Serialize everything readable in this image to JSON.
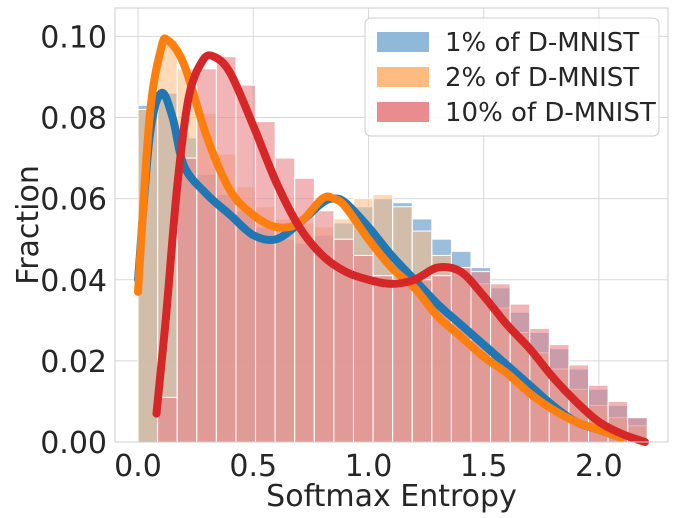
{
  "chart_data": {
    "type": "bar",
    "xlabel": "Softmax Entropy",
    "ylabel": "Fraction",
    "xlim": [
      -0.1,
      2.3
    ],
    "ylim": [
      0,
      0.107
    ],
    "grid": true,
    "legend_position": "top-right",
    "x_ticks": [
      {
        "value": 0.0,
        "label": "0.0"
      },
      {
        "value": 0.5,
        "label": "0.5"
      },
      {
        "value": 1.0,
        "label": "1.0"
      },
      {
        "value": 1.5,
        "label": "1.5"
      },
      {
        "value": 2.0,
        "label": "2.0"
      }
    ],
    "y_ticks": [
      {
        "value": 0.0,
        "label": "0.00"
      },
      {
        "value": 0.02,
        "label": "0.02"
      },
      {
        "value": 0.04,
        "label": "0.04"
      },
      {
        "value": 0.06,
        "label": "0.06"
      },
      {
        "value": 0.08,
        "label": "0.08"
      },
      {
        "value": 0.1,
        "label": "0.10"
      }
    ],
    "colors": {
      "s1_fill": "#8fb8d9",
      "s1_line": "#1f77b4",
      "s2_fill": "#ffbb80",
      "s2_line": "#ff7f0e",
      "s3_fill": "#e8868a",
      "s3_line": "#d62728",
      "grid": "#d8d8d8",
      "axis": "#262626"
    },
    "series": [
      {
        "name": "1% of D-MNIST",
        "histogram": {
          "bin_start": 0.0,
          "bin_width": 0.085,
          "values": [
            0.083,
            0.086,
            0.075,
            0.066,
            0.061,
            0.057,
            0.053,
            0.05,
            0.049,
            0.051,
            0.054,
            0.058,
            0.06,
            0.059,
            0.055,
            0.05,
            0.047,
            0.043,
            0.038,
            0.032,
            0.027,
            0.023,
            0.018,
            0.013,
            0.009,
            0.006
          ]
        },
        "kde": {
          "x": [
            0.0,
            0.05,
            0.1,
            0.15,
            0.2,
            0.3,
            0.4,
            0.5,
            0.6,
            0.7,
            0.8,
            0.85,
            0.9,
            1.0,
            1.1,
            1.2,
            1.3,
            1.4,
            1.5,
            1.6,
            1.7,
            1.8,
            1.9,
            2.0,
            2.1
          ],
          "y": [
            0.04,
            0.075,
            0.086,
            0.08,
            0.068,
            0.061,
            0.056,
            0.051,
            0.05,
            0.054,
            0.059,
            0.06,
            0.059,
            0.053,
            0.046,
            0.04,
            0.034,
            0.029,
            0.024,
            0.019,
            0.014,
            0.009,
            0.005,
            0.003,
            0.001
          ]
        }
      },
      {
        "name": "2% of D-MNIST",
        "histogram": {
          "bin_start": 0.0,
          "bin_width": 0.085,
          "values": [
            0.082,
            0.099,
            0.092,
            0.081,
            0.071,
            0.063,
            0.058,
            0.055,
            0.054,
            0.053,
            0.055,
            0.06,
            0.061,
            0.058,
            0.052,
            0.046,
            0.043,
            0.039,
            0.033,
            0.027,
            0.022,
            0.018,
            0.013,
            0.009,
            0.006,
            0.004
          ]
        },
        "kde": {
          "x": [
            0.0,
            0.05,
            0.1,
            0.13,
            0.2,
            0.3,
            0.4,
            0.5,
            0.6,
            0.7,
            0.8,
            0.85,
            0.9,
            1.0,
            1.1,
            1.2,
            1.3,
            1.4,
            1.5,
            1.6,
            1.7,
            1.8,
            1.9,
            2.0,
            2.1
          ],
          "y": [
            0.037,
            0.08,
            0.097,
            0.099,
            0.093,
            0.075,
            0.062,
            0.056,
            0.053,
            0.054,
            0.06,
            0.06,
            0.058,
            0.05,
            0.043,
            0.038,
            0.031,
            0.026,
            0.021,
            0.017,
            0.012,
            0.008,
            0.005,
            0.003,
            0.001
          ]
        }
      },
      {
        "name": "10% of D-MNIST",
        "histogram": {
          "bin_start": 0.0,
          "bin_width": 0.085,
          "values": [
            0.0,
            0.011,
            0.07,
            0.092,
            0.095,
            0.088,
            0.079,
            0.07,
            0.065,
            0.057,
            0.05,
            0.046,
            0.041,
            0.04,
            0.04,
            0.041,
            0.043,
            0.042,
            0.039,
            0.034,
            0.028,
            0.024,
            0.019,
            0.014,
            0.01,
            0.006
          ]
        },
        "kde": {
          "x": [
            0.08,
            0.12,
            0.17,
            0.22,
            0.28,
            0.33,
            0.4,
            0.5,
            0.6,
            0.7,
            0.8,
            0.9,
            1.0,
            1.1,
            1.2,
            1.3,
            1.4,
            1.5,
            1.6,
            1.7,
            1.8,
            1.9,
            2.0,
            2.1,
            2.2
          ],
          "y": [
            0.007,
            0.03,
            0.063,
            0.085,
            0.094,
            0.095,
            0.091,
            0.078,
            0.064,
            0.053,
            0.046,
            0.042,
            0.04,
            0.039,
            0.04,
            0.043,
            0.042,
            0.036,
            0.029,
            0.023,
            0.016,
            0.01,
            0.005,
            0.002,
            0.0
          ]
        }
      }
    ]
  }
}
